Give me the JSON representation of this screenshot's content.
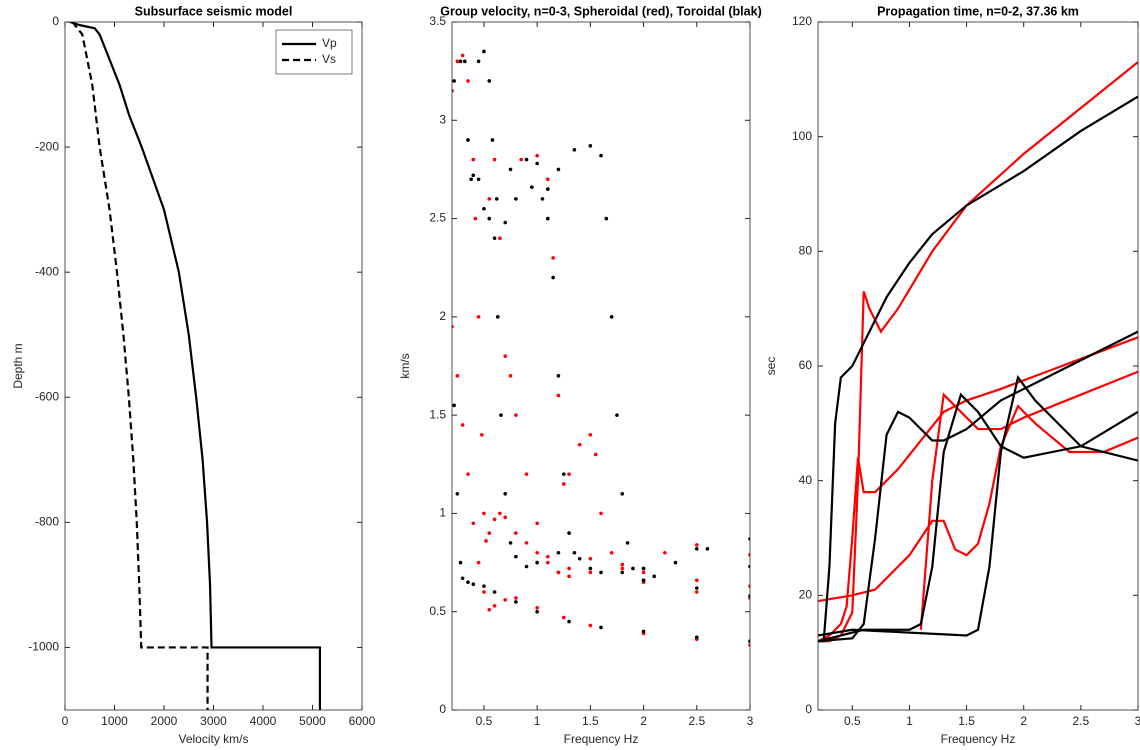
{
  "chart_data": [
    {
      "type": "line",
      "title": "Subsurface seismic model",
      "xlabel": "Velocity km/s",
      "ylabel": "Depth m",
      "xlim": [
        0,
        6000
      ],
      "xticks": [
        0,
        1000,
        2000,
        3000,
        4000,
        5000,
        6000
      ],
      "ylim": [
        -1100,
        0
      ],
      "yticks": [
        -1000,
        -800,
        -600,
        -400,
        -200,
        0
      ],
      "legend": "northeast",
      "series": [
        {
          "name": "Vp",
          "color": "#000000",
          "linestyle": "solid",
          "x": [
            100,
            300,
            600,
            700,
            900,
            1100,
            1300,
            1550,
            2000,
            2300,
            2500,
            2650,
            2780,
            2870,
            2930,
            2960,
            5150,
            5150
          ],
          "values": [
            0,
            -5,
            -10,
            -20,
            -60,
            -100,
            -150,
            -200,
            -300,
            -400,
            -500,
            -600,
            -700,
            -800,
            -900,
            -1000,
            -1000,
            -1100
          ]
        },
        {
          "name": "Vs",
          "color": "#000000",
          "linestyle": "dashed",
          "x": [
            150,
            350,
            450,
            550,
            700,
            900,
            1050,
            1180,
            1290,
            1380,
            1450,
            1500,
            1540,
            2880,
            2880
          ],
          "values": [
            0,
            -20,
            -60,
            -100,
            -200,
            -300,
            -400,
            -500,
            -600,
            -700,
            -800,
            -900,
            -1000,
            -1000,
            -1100
          ]
        }
      ]
    },
    {
      "type": "scatter",
      "title": "Group velocity, n=0-3, Spheroidal (red), Toroidal (blak)",
      "xlabel": "Frequency Hz",
      "ylabel": "km/s",
      "xlim": [
        0.2,
        3
      ],
      "xticks": [
        0.5,
        1,
        1.5,
        2,
        2.5,
        3
      ],
      "ylim": [
        0,
        3.5
      ],
      "yticks": [
        0,
        0.5,
        1,
        1.5,
        2,
        2.5,
        3,
        3.5
      ],
      "series": [
        {
          "color": "#ff0000",
          "x": [
            0.2,
            0.25,
            0.3,
            0.35,
            0.4,
            0.45,
            0.5,
            0.55,
            0.6,
            0.7,
            0.8,
            1.0,
            1.25,
            1.5,
            2.0,
            2.5,
            3.0
          ],
          "values": [
            1.95,
            1.7,
            1.45,
            1.2,
            0.95,
            0.75,
            0.6,
            0.51,
            0.53,
            0.56,
            0.57,
            0.52,
            0.47,
            0.43,
            0.39,
            0.36,
            0.33
          ]
        },
        {
          "color": "#ff0000",
          "x": [
            0.2,
            0.25,
            0.3,
            0.35,
            0.4,
            0.42,
            0.45,
            0.48,
            0.5,
            0.52,
            0.55,
            0.6,
            0.65,
            0.7,
            0.8,
            0.9,
            1.0,
            1.1,
            1.2,
            1.3,
            1.5,
            2.0,
            2.5,
            3.0
          ],
          "values": [
            3.15,
            3.3,
            3.33,
            3.2,
            2.8,
            2.5,
            2.0,
            1.4,
            1.0,
            0.86,
            0.9,
            0.97,
            1.0,
            0.98,
            0.9,
            0.85,
            0.8,
            0.75,
            0.7,
            0.68,
            0.7,
            0.65,
            0.6,
            0.57
          ]
        },
        {
          "color": "#ff0000",
          "x": [
            0.55,
            0.6,
            0.65,
            0.7,
            0.75,
            0.8,
            0.9,
            1.0,
            1.1,
            1.2,
            1.3,
            1.5,
            1.8,
            2.0,
            2.5,
            3.0
          ],
          "values": [
            2.6,
            2.8,
            2.4,
            1.8,
            1.7,
            1.5,
            1.2,
            0.95,
            0.78,
            0.7,
            0.72,
            0.77,
            0.72,
            0.7,
            0.66,
            0.63
          ]
        },
        {
          "color": "#ff0000",
          "x": [
            0.85,
            1.0,
            1.1,
            1.15,
            1.2,
            1.25,
            1.3,
            1.4,
            1.5,
            1.55,
            1.6,
            1.7,
            1.8,
            2.0,
            2.2,
            2.5,
            3.0
          ],
          "values": [
            2.8,
            2.82,
            2.7,
            2.3,
            1.6,
            1.15,
            1.2,
            1.35,
            1.4,
            1.3,
            1.0,
            0.8,
            0.74,
            0.72,
            0.8,
            0.84,
            0.79
          ]
        },
        {
          "color": "#000000",
          "x": [
            0.22,
            0.25,
            0.28,
            0.3,
            0.35,
            0.4,
            0.5,
            0.6,
            0.8,
            1.0,
            1.3,
            1.6,
            2.0,
            2.5,
            3.0
          ],
          "values": [
            1.55,
            1.1,
            0.75,
            0.67,
            0.65,
            0.64,
            0.63,
            0.6,
            0.55,
            0.5,
            0.45,
            0.42,
            0.4,
            0.37,
            0.35
          ]
        },
        {
          "color": "#000000",
          "x": [
            0.22,
            0.28,
            0.32,
            0.35,
            0.38,
            0.4,
            0.45,
            0.5,
            0.55,
            0.6,
            0.63,
            0.66,
            0.7,
            0.75,
            0.8,
            0.9,
            1.0,
            1.2,
            1.4,
            1.6,
            2.0,
            2.5,
            3.0
          ],
          "values": [
            3.2,
            3.3,
            3.3,
            2.9,
            2.7,
            2.72,
            2.7,
            2.55,
            2.5,
            2.4,
            2.0,
            1.5,
            1.1,
            0.85,
            0.78,
            0.73,
            0.75,
            0.8,
            0.77,
            0.7,
            0.66,
            0.62,
            0.58
          ]
        },
        {
          "color": "#000000",
          "x": [
            0.45,
            0.5,
            0.55,
            0.58,
            0.62,
            0.7,
            0.8,
            0.95,
            1.05,
            1.1,
            1.15,
            1.2,
            1.25,
            1.3,
            1.35,
            1.5,
            1.8,
            2.0,
            2.5,
            3.0
          ],
          "values": [
            3.3,
            3.35,
            3.2,
            2.9,
            2.6,
            2.48,
            2.6,
            2.66,
            2.6,
            2.5,
            2.2,
            1.7,
            1.2,
            0.9,
            0.8,
            0.72,
            0.7,
            0.72,
            0.82,
            0.87
          ]
        },
        {
          "color": "#000000",
          "x": [
            0.75,
            0.9,
            1.0,
            1.1,
            1.2,
            1.35,
            1.5,
            1.6,
            1.65,
            1.7,
            1.75,
            1.8,
            1.85,
            1.9,
            2.0,
            2.1,
            2.3,
            2.6,
            3.0
          ],
          "values": [
            2.75,
            2.8,
            2.78,
            2.65,
            2.75,
            2.85,
            2.87,
            2.82,
            2.5,
            2.0,
            1.5,
            1.1,
            0.85,
            0.72,
            0.66,
            0.68,
            0.75,
            0.82,
            0.73
          ]
        }
      ]
    },
    {
      "type": "line",
      "title": "Propagation time, n=0-2, 37.36 km",
      "xlabel": "Frequency Hz",
      "ylabel": "sec",
      "xlim": [
        0.2,
        3
      ],
      "xticks": [
        0.5,
        1,
        1.5,
        2,
        2.5,
        3
      ],
      "ylim": [
        0,
        120
      ],
      "yticks": [
        0,
        20,
        40,
        60,
        80,
        100,
        120
      ],
      "series": [
        {
          "color": "#ff0000",
          "x": [
            0.2,
            0.3,
            0.4,
            0.45,
            0.5,
            0.55,
            0.6,
            0.65,
            0.75,
            0.9,
            1.2,
            1.5,
            2.0,
            2.5,
            3.0
          ],
          "values": [
            12,
            12,
            13,
            15,
            17,
            40,
            73,
            70,
            66,
            70,
            80,
            88,
            97,
            105,
            113
          ]
        },
        {
          "color": "#ff0000",
          "x": [
            0.2,
            0.3,
            0.4,
            0.45,
            0.5,
            0.55,
            0.6,
            0.7,
            0.9,
            1.1,
            1.3,
            1.5,
            1.8,
            2.2,
            2.6,
            3.0
          ],
          "values": [
            12,
            13,
            15,
            18,
            30,
            44,
            38,
            38,
            42,
            47,
            52,
            54,
            56,
            59,
            62,
            65
          ]
        },
        {
          "color": "#ff0000",
          "x": [
            0.2,
            0.5,
            0.7,
            0.85,
            1.0,
            1.1,
            1.2,
            1.3,
            1.4,
            1.5,
            1.6,
            1.7,
            1.8,
            1.95,
            2.1,
            2.4,
            2.7,
            3.0
          ],
          "values": [
            19,
            20,
            21,
            24,
            27,
            30,
            33,
            33,
            28,
            27,
            29,
            36,
            46,
            53,
            50,
            45,
            45,
            47.5
          ]
        },
        {
          "color": "#ff0000",
          "x": [
            1.1,
            1.2,
            1.3,
            1.4,
            1.6,
            1.8,
            2.0,
            2.5,
            3.0
          ],
          "values": [
            14,
            40,
            55,
            53,
            49,
            49,
            51,
            55,
            59
          ]
        },
        {
          "color": "#000000",
          "x": [
            0.2,
            0.25,
            0.3,
            0.35,
            0.4,
            0.5,
            0.6,
            0.8,
            1.0,
            1.2,
            1.5,
            2.0,
            2.5,
            3.0
          ],
          "values": [
            12,
            12,
            25,
            50,
            58,
            60,
            64,
            72,
            78,
            83,
            88,
            94,
            101,
            107
          ]
        },
        {
          "color": "#000000",
          "x": [
            0.2,
            0.5,
            0.6,
            0.7,
            0.8,
            0.9,
            1.0,
            1.2,
            1.3,
            1.5,
            1.8,
            2.2,
            2.6,
            3.0
          ],
          "values": [
            12,
            12.5,
            15,
            30,
            48,
            52,
            51,
            47,
            47,
            49,
            54,
            58,
            62,
            66
          ]
        },
        {
          "color": "#000000",
          "x": [
            0.2,
            0.6,
            1.0,
            1.1,
            1.2,
            1.3,
            1.45,
            1.6,
            1.8,
            2.0,
            2.5,
            3.0
          ],
          "values": [
            12,
            14,
            14,
            15,
            25,
            45,
            55,
            52,
            46,
            44,
            46,
            52
          ]
        },
        {
          "color": "#000000",
          "x": [
            0.2,
            0.5,
            1.0,
            1.5,
            1.6,
            1.7,
            1.8,
            1.95,
            2.1,
            2.5,
            3.0
          ],
          "values": [
            13,
            14,
            13.5,
            13,
            14,
            25,
            45,
            58,
            54,
            46,
            43.5
          ]
        }
      ]
    }
  ]
}
